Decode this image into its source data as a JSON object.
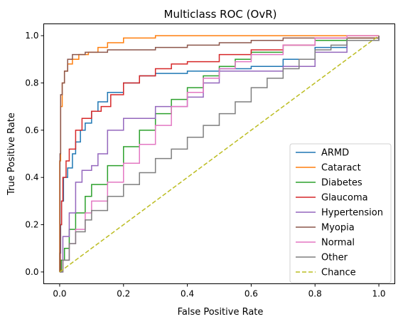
{
  "chart_data": {
    "type": "line",
    "title": "Multiclass ROC (OvR)",
    "xlabel": "False Positive Rate",
    "ylabel": "True Positive Rate",
    "xlim": [
      -0.05,
      1.05
    ],
    "ylim": [
      -0.05,
      1.05
    ],
    "xticks": [
      "0.0",
      "0.2",
      "0.4",
      "0.6",
      "0.8",
      "1.0"
    ],
    "yticks": [
      "0.0",
      "0.2",
      "0.4",
      "0.6",
      "0.8",
      "1.0"
    ],
    "grid": false,
    "legend_position": "lower-right",
    "series": [
      {
        "name": "ARMD",
        "color": "#1f77b4",
        "style": "solid",
        "points": [
          [
            0,
            0
          ],
          [
            0,
            0.08
          ],
          [
            0.003,
            0.2
          ],
          [
            0.006,
            0.3
          ],
          [
            0.012,
            0.4
          ],
          [
            0.025,
            0.44
          ],
          [
            0.04,
            0.5
          ],
          [
            0.05,
            0.55
          ],
          [
            0.065,
            0.6
          ],
          [
            0.08,
            0.63
          ],
          [
            0.1,
            0.68
          ],
          [
            0.12,
            0.72
          ],
          [
            0.15,
            0.76
          ],
          [
            0.2,
            0.8
          ],
          [
            0.25,
            0.83
          ],
          [
            0.3,
            0.84
          ],
          [
            0.4,
            0.85
          ],
          [
            0.5,
            0.86
          ],
          [
            0.6,
            0.87
          ],
          [
            0.7,
            0.9
          ],
          [
            0.8,
            0.95
          ],
          [
            0.9,
            0.98
          ],
          [
            1,
            1
          ]
        ]
      },
      {
        "name": "Cataract",
        "color": "#ff7f0e",
        "style": "solid",
        "points": [
          [
            0,
            0
          ],
          [
            0,
            0.47
          ],
          [
            0.003,
            0.7
          ],
          [
            0.008,
            0.8
          ],
          [
            0.015,
            0.85
          ],
          [
            0.025,
            0.88
          ],
          [
            0.04,
            0.9
          ],
          [
            0.06,
            0.92
          ],
          [
            0.09,
            0.93
          ],
          [
            0.12,
            0.95
          ],
          [
            0.15,
            0.97
          ],
          [
            0.2,
            0.99
          ],
          [
            0.3,
            1.0
          ],
          [
            1,
            1
          ]
        ]
      },
      {
        "name": "Diabetes",
        "color": "#2ca02c",
        "style": "solid",
        "points": [
          [
            0,
            0
          ],
          [
            0.005,
            0.05
          ],
          [
            0.015,
            0.1
          ],
          [
            0.03,
            0.18
          ],
          [
            0.05,
            0.25
          ],
          [
            0.08,
            0.32
          ],
          [
            0.1,
            0.37
          ],
          [
            0.15,
            0.45
          ],
          [
            0.2,
            0.53
          ],
          [
            0.25,
            0.6
          ],
          [
            0.3,
            0.67
          ],
          [
            0.35,
            0.73
          ],
          [
            0.4,
            0.78
          ],
          [
            0.45,
            0.83
          ],
          [
            0.5,
            0.87
          ],
          [
            0.55,
            0.9
          ],
          [
            0.6,
            0.93
          ],
          [
            0.7,
            0.96
          ],
          [
            0.8,
            0.98
          ],
          [
            0.9,
            0.99
          ],
          [
            1,
            1
          ]
        ]
      },
      {
        "name": "Glaucoma",
        "color": "#d62728",
        "style": "solid",
        "points": [
          [
            0,
            0
          ],
          [
            0.002,
            0.2
          ],
          [
            0.006,
            0.3
          ],
          [
            0.01,
            0.4
          ],
          [
            0.02,
            0.47
          ],
          [
            0.03,
            0.52
          ],
          [
            0.05,
            0.6
          ],
          [
            0.07,
            0.65
          ],
          [
            0.1,
            0.68
          ],
          [
            0.13,
            0.7
          ],
          [
            0.16,
            0.75
          ],
          [
            0.2,
            0.8
          ],
          [
            0.25,
            0.83
          ],
          [
            0.3,
            0.86
          ],
          [
            0.35,
            0.88
          ],
          [
            0.4,
            0.89
          ],
          [
            0.5,
            0.92
          ],
          [
            0.6,
            0.94
          ],
          [
            0.7,
            0.96
          ],
          [
            0.8,
            0.99
          ],
          [
            1,
            1
          ]
        ]
      },
      {
        "name": "Hypertension",
        "color": "#9467bd",
        "style": "solid",
        "points": [
          [
            0,
            0
          ],
          [
            0.01,
            0.15
          ],
          [
            0.03,
            0.25
          ],
          [
            0.05,
            0.38
          ],
          [
            0.07,
            0.43
          ],
          [
            0.1,
            0.45
          ],
          [
            0.12,
            0.5
          ],
          [
            0.15,
            0.6
          ],
          [
            0.2,
            0.65
          ],
          [
            0.3,
            0.7
          ],
          [
            0.4,
            0.74
          ],
          [
            0.45,
            0.8
          ],
          [
            0.5,
            0.85
          ],
          [
            0.6,
            0.85
          ],
          [
            0.7,
            0.87
          ],
          [
            0.8,
            0.93
          ],
          [
            0.9,
            0.98
          ],
          [
            1,
            1
          ]
        ]
      },
      {
        "name": "Myopia",
        "color": "#8c564b",
        "style": "solid",
        "points": [
          [
            0,
            0
          ],
          [
            0.001,
            0.5
          ],
          [
            0.003,
            0.75
          ],
          [
            0.008,
            0.8
          ],
          [
            0.015,
            0.85
          ],
          [
            0.025,
            0.9
          ],
          [
            0.04,
            0.92
          ],
          [
            0.08,
            0.93
          ],
          [
            0.15,
            0.94
          ],
          [
            0.3,
            0.95
          ],
          [
            0.4,
            0.96
          ],
          [
            0.5,
            0.97
          ],
          [
            0.6,
            0.98
          ],
          [
            0.7,
            0.99
          ],
          [
            1,
            1
          ]
        ]
      },
      {
        "name": "Normal",
        "color": "#e377c2",
        "style": "solid",
        "points": [
          [
            0,
            0
          ],
          [
            0.01,
            0.05
          ],
          [
            0.03,
            0.12
          ],
          [
            0.05,
            0.18
          ],
          [
            0.08,
            0.25
          ],
          [
            0.1,
            0.3
          ],
          [
            0.15,
            0.38
          ],
          [
            0.2,
            0.46
          ],
          [
            0.25,
            0.54
          ],
          [
            0.3,
            0.62
          ],
          [
            0.35,
            0.7
          ],
          [
            0.4,
            0.76
          ],
          [
            0.45,
            0.82
          ],
          [
            0.5,
            0.86
          ],
          [
            0.55,
            0.89
          ],
          [
            0.6,
            0.92
          ],
          [
            0.7,
            0.96
          ],
          [
            0.8,
            0.99
          ],
          [
            0.9,
            1.0
          ],
          [
            1,
            1
          ]
        ]
      },
      {
        "name": "Other",
        "color": "#7f7f7f",
        "style": "solid",
        "points": [
          [
            0,
            0
          ],
          [
            0.01,
            0.05
          ],
          [
            0.03,
            0.12
          ],
          [
            0.05,
            0.17
          ],
          [
            0.08,
            0.22
          ],
          [
            0.1,
            0.26
          ],
          [
            0.15,
            0.32
          ],
          [
            0.2,
            0.37
          ],
          [
            0.25,
            0.42
          ],
          [
            0.3,
            0.48
          ],
          [
            0.35,
            0.52
          ],
          [
            0.4,
            0.57
          ],
          [
            0.45,
            0.62
          ],
          [
            0.5,
            0.67
          ],
          [
            0.55,
            0.72
          ],
          [
            0.6,
            0.78
          ],
          [
            0.65,
            0.82
          ],
          [
            0.7,
            0.86
          ],
          [
            0.75,
            0.9
          ],
          [
            0.8,
            0.94
          ],
          [
            0.85,
            0.96
          ],
          [
            0.9,
            0.98
          ],
          [
            1,
            1
          ]
        ]
      },
      {
        "name": "Chance",
        "color": "#bcbd22",
        "style": "dashed",
        "points": [
          [
            0,
            0
          ],
          [
            1,
            1
          ]
        ]
      }
    ]
  }
}
